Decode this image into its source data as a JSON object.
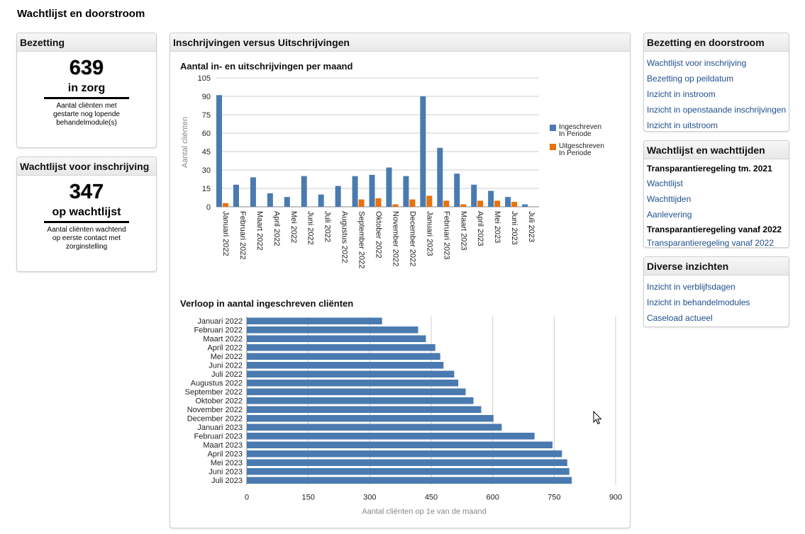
{
  "page": {
    "title": "Wachtlijst en doorstroom"
  },
  "bezetting": {
    "title": "Bezetting",
    "value": "639",
    "label": "in zorg",
    "desc_lines": [
      "Aantal cliënten met",
      "gestarte nog lopende",
      "behandelmodule(s)"
    ]
  },
  "wachtlijst_kpi": {
    "title": "Wachtlijst voor inschrijving",
    "value": "347",
    "label": "op wachtlijst",
    "desc_lines": [
      "Aantal cliënten wachtend",
      "op eerste contact met",
      "zorginstelling"
    ]
  },
  "center": {
    "title": "Inschrijvingen versus Uitschrijvingen"
  },
  "chart_data": [
    {
      "type": "bar",
      "title": "Aantal in- en uitschrijvingen per maand",
      "ylabel": "Aantal cliënten",
      "xlabel": "",
      "ylim": [
        0,
        105
      ],
      "yticks": [
        0,
        15,
        30,
        45,
        60,
        75,
        90,
        105
      ],
      "grid": true,
      "legend": "right",
      "categories": [
        "Januari 2022",
        "Februari 2022",
        "Maart 2022",
        "April 2022",
        "Mei 2022",
        "Juni 2022",
        "Juli 2022",
        "Augustus 2022",
        "September 2022",
        "Oktober 2022",
        "November 2022",
        "December 2022",
        "Januari 2023",
        "Februari 2023",
        "Maart 2023",
        "April 2023",
        "Mei 2023",
        "Juni 2023",
        "Juli 2023"
      ],
      "series": [
        {
          "name": "Ingeschreven In Periode",
          "legend_lines": [
            "Ingeschreven",
            "In Periode"
          ],
          "color": "#4a7ab0",
          "values": [
            91,
            18,
            24,
            11,
            8,
            25,
            10,
            17,
            25,
            26,
            32,
            25,
            90,
            48,
            27,
            18,
            13,
            8,
            2
          ]
        },
        {
          "name": "Uitgeschreven In Periode",
          "legend_lines": [
            "Uitgeschreven",
            "In Periode"
          ],
          "color": "#e8720c",
          "values": [
            3,
            0,
            0,
            0,
            0,
            0,
            0,
            0,
            6,
            7,
            2,
            6,
            9,
            5,
            2,
            5,
            5,
            4,
            0
          ]
        }
      ]
    },
    {
      "type": "bar",
      "orientation": "horizontal",
      "title": "Verloop in aantal ingeschreven cliënten",
      "xlabel": "Aantal cliënten op 1e van de maand",
      "ylabel": "",
      "xlim": [
        0,
        900
      ],
      "xticks": [
        0,
        150,
        300,
        450,
        600,
        750,
        900
      ],
      "grid": true,
      "color": "#4a7ab0",
      "categories": [
        "Januari 2022",
        "Februari 2022",
        "Maart 2022",
        "April 2022",
        "Mei 2022",
        "Juni 2022",
        "Juli 2022",
        "Augustus 2022",
        "September 2022",
        "Oktober 2022",
        "November 2022",
        "December 2022",
        "Januari 2023",
        "Februari 2023",
        "Maart 2023",
        "April 2023",
        "Mei 2023",
        "Juni 2023",
        "Juli 2023"
      ],
      "values": [
        330,
        418,
        437,
        460,
        472,
        480,
        506,
        516,
        534,
        553,
        572,
        602,
        622,
        702,
        746,
        769,
        782,
        787,
        793
      ]
    }
  ],
  "bezetting_doorstroom": {
    "title": "Bezetting en doorstroom",
    "links": [
      "Wachtlijst voor inschrijving",
      "Bezetting op peildatum",
      "Inzicht in instroom",
      "Inzicht in openstaande inschrijvingen",
      "Inzicht in uitstroom"
    ]
  },
  "wachttijden": {
    "title": "Wachtlijst en wachttijden",
    "subhead1": "Transparantieregeling tm. 2021",
    "links1": [
      "Wachtlijst",
      "Wachttijden",
      "Aanlevering"
    ],
    "subhead2": "Transparantieregeling vanaf 2022",
    "links2": [
      "Transparantieregeling vanaf 2022"
    ]
  },
  "diverse": {
    "title": "Diverse inzichten",
    "links": [
      "Inzicht in verblijfsdagen",
      "Inzicht in behandelmodules",
      "Caseload actueel"
    ]
  },
  "icons": {
    "cursor": "mouse-pointer-icon"
  }
}
